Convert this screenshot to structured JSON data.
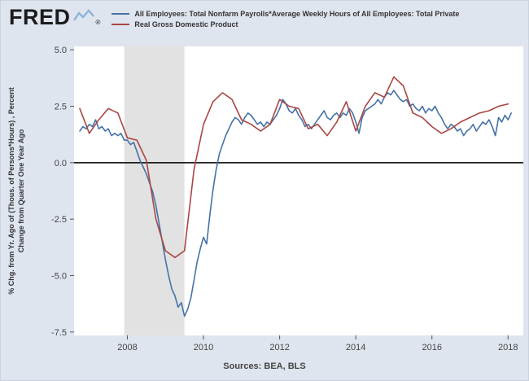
{
  "logo": {
    "text": "FRED",
    "registered": "®"
  },
  "legend": {
    "items": [
      {
        "label": "All Employees: Total Nonfarm Payrolls*Average Weekly Hours of All Employees: Total Private",
        "color": "#4572a7"
      },
      {
        "label": "Real Gross Domestic Product",
        "color": "#aa4643"
      }
    ]
  },
  "footer": {
    "sources_label": "Sources: BEA, BLS"
  },
  "colors": {
    "background": "#dfe5ee",
    "plot_background": "#ffffff",
    "recession_band": "#e2e2e2",
    "zero_line": "#000000",
    "blue_series": "#4572a7",
    "red_series": "#aa4643",
    "tick": "#555555",
    "text": "#444444"
  },
  "chart_data": {
    "type": "line",
    "title": "",
    "xlabel": "",
    "ylabel_lines": [
      "% Chg. from Yr. Ago of (Thous. of Persons*Hours) , Percent",
      "Change from Quarter One Year Ago"
    ],
    "xlim": [
      2006.6,
      2018.4
    ],
    "ylim": [
      -7.5,
      5.0
    ],
    "yticks": [
      5.0,
      2.5,
      0.0,
      -2.5,
      -5.0,
      -7.5
    ],
    "ytick_labels": [
      "5.0",
      "2.5",
      "0.0",
      "-2.5",
      "-5.0",
      "-7.5"
    ],
    "xticks": [
      2008,
      2010,
      2012,
      2014,
      2016,
      2018
    ],
    "grid": false,
    "zero_line": true,
    "legend_position": "top",
    "recession_bands": [
      [
        2007.92,
        2009.5
      ]
    ],
    "series": [
      {
        "name": "All Employees: Total Nonfarm Payrolls*Average Weekly Hours of All Employees: Total Private",
        "color": "#4572a7",
        "frequency": "monthly",
        "x": [
          2006.75,
          2006.833,
          2006.917,
          2007.0,
          2007.083,
          2007.167,
          2007.25,
          2007.333,
          2007.417,
          2007.5,
          2007.583,
          2007.667,
          2007.75,
          2007.833,
          2007.917,
          2008.0,
          2008.083,
          2008.167,
          2008.25,
          2008.333,
          2008.417,
          2008.5,
          2008.583,
          2008.667,
          2008.75,
          2008.833,
          2008.917,
          2009.0,
          2009.083,
          2009.167,
          2009.25,
          2009.333,
          2009.417,
          2009.5,
          2009.583,
          2009.667,
          2009.75,
          2009.833,
          2009.917,
          2010.0,
          2010.083,
          2010.167,
          2010.25,
          2010.333,
          2010.417,
          2010.5,
          2010.583,
          2010.667,
          2010.75,
          2010.833,
          2010.917,
          2011.0,
          2011.083,
          2011.167,
          2011.25,
          2011.333,
          2011.417,
          2011.5,
          2011.583,
          2011.667,
          2011.75,
          2011.833,
          2011.917,
          2012.0,
          2012.083,
          2012.167,
          2012.25,
          2012.333,
          2012.417,
          2012.5,
          2012.583,
          2012.667,
          2012.75,
          2012.833,
          2012.917,
          2013.0,
          2013.083,
          2013.167,
          2013.25,
          2013.333,
          2013.417,
          2013.5,
          2013.583,
          2013.667,
          2013.75,
          2013.833,
          2013.917,
          2014.0,
          2014.083,
          2014.167,
          2014.25,
          2014.333,
          2014.417,
          2014.5,
          2014.583,
          2014.667,
          2014.75,
          2014.833,
          2014.917,
          2015.0,
          2015.083,
          2015.167,
          2015.25,
          2015.333,
          2015.417,
          2015.5,
          2015.583,
          2015.667,
          2015.75,
          2015.833,
          2015.917,
          2016.0,
          2016.083,
          2016.167,
          2016.25,
          2016.333,
          2016.417,
          2016.5,
          2016.583,
          2016.667,
          2016.75,
          2016.833,
          2016.917,
          2017.0,
          2017.083,
          2017.167,
          2017.25,
          2017.333,
          2017.417,
          2017.5,
          2017.583,
          2017.667,
          2017.75,
          2017.833,
          2017.917,
          2018.0,
          2018.083
        ],
        "y": [
          1.4,
          1.6,
          1.5,
          1.7,
          1.6,
          1.9,
          1.5,
          1.6,
          1.4,
          1.5,
          1.2,
          1.3,
          1.2,
          1.3,
          1.0,
          1.0,
          0.8,
          0.9,
          0.5,
          0.1,
          -0.2,
          -0.5,
          -0.9,
          -1.3,
          -1.9,
          -2.7,
          -3.5,
          -4.3,
          -5.0,
          -5.6,
          -5.9,
          -6.4,
          -6.2,
          -6.8,
          -6.5,
          -6.0,
          -5.2,
          -4.4,
          -3.8,
          -3.3,
          -3.6,
          -2.3,
          -1.2,
          -0.3,
          0.4,
          0.8,
          1.2,
          1.5,
          1.8,
          2.0,
          1.9,
          1.7,
          2.0,
          2.2,
          2.1,
          1.9,
          1.7,
          1.8,
          1.6,
          1.8,
          1.7,
          1.9,
          2.1,
          2.4,
          2.8,
          2.6,
          2.3,
          2.2,
          2.4,
          2.1,
          1.9,
          1.6,
          1.7,
          1.5,
          1.7,
          1.9,
          2.1,
          2.3,
          2.0,
          1.9,
          2.1,
          2.2,
          2.0,
          2.2,
          2.1,
          2.4,
          2.2,
          1.8,
          1.3,
          2.0,
          2.3,
          2.4,
          2.5,
          2.6,
          2.8,
          2.6,
          2.9,
          3.1,
          3.0,
          3.2,
          3.0,
          2.8,
          2.7,
          2.8,
          2.5,
          2.6,
          2.4,
          2.3,
          2.5,
          2.2,
          2.4,
          2.3,
          2.5,
          2.2,
          2.0,
          1.7,
          1.5,
          1.7,
          1.6,
          1.4,
          1.5,
          1.2,
          1.4,
          1.5,
          1.7,
          1.4,
          1.6,
          1.8,
          1.7,
          1.9,
          1.6,
          1.2,
          2.0,
          1.8,
          2.1,
          1.9,
          2.2
        ]
      },
      {
        "name": "Real Gross Domestic Product",
        "color": "#aa4643",
        "frequency": "quarterly",
        "x": [
          2006.75,
          2007.0,
          2007.25,
          2007.5,
          2007.75,
          2008.0,
          2008.25,
          2008.5,
          2008.75,
          2009.0,
          2009.25,
          2009.5,
          2009.75,
          2010.0,
          2010.25,
          2010.5,
          2010.75,
          2011.0,
          2011.25,
          2011.5,
          2011.75,
          2012.0,
          2012.25,
          2012.5,
          2012.75,
          2013.0,
          2013.25,
          2013.5,
          2013.75,
          2014.0,
          2014.25,
          2014.5,
          2014.75,
          2015.0,
          2015.25,
          2015.5,
          2015.75,
          2016.0,
          2016.25,
          2016.5,
          2016.75,
          2017.0,
          2017.25,
          2017.5,
          2017.75,
          2018.0
        ],
        "y": [
          2.4,
          1.3,
          1.9,
          2.4,
          2.2,
          1.1,
          1.0,
          0.1,
          -2.5,
          -3.9,
          -4.2,
          -3.9,
          -0.3,
          1.7,
          2.7,
          3.1,
          2.8,
          1.9,
          1.7,
          1.4,
          1.7,
          2.8,
          2.5,
          2.4,
          1.5,
          1.7,
          1.2,
          1.8,
          2.7,
          1.4,
          2.5,
          3.1,
          2.9,
          3.8,
          3.4,
          2.2,
          2.0,
          1.6,
          1.3,
          1.5,
          1.8,
          2.0,
          2.2,
          2.3,
          2.5,
          2.6
        ]
      }
    ]
  }
}
